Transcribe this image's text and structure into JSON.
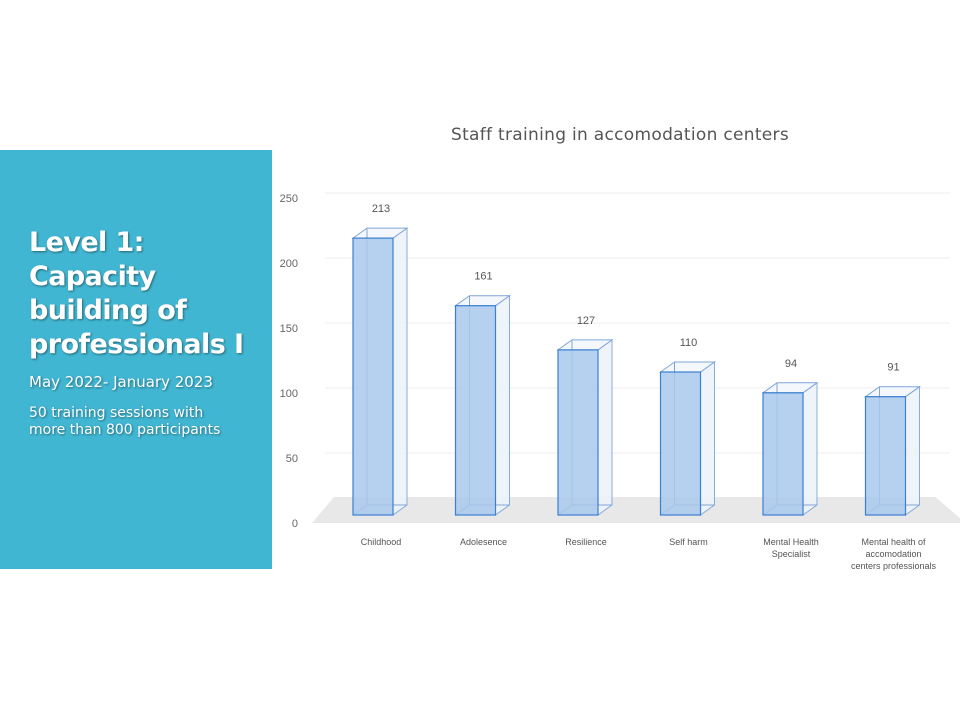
{
  "panel": {
    "heading": "Level 1:\nCapacity building of professionals I",
    "dates": "May 2022- January 2023",
    "description": "50 training sessions with more than 800 participants"
  },
  "colors": {
    "panel_bg": "#41b6d2",
    "bar_fill": "#a9c8ec",
    "bar_stroke": "#3b7fd1",
    "floor": "#e8e8e8",
    "gridline": "#eeeeee"
  },
  "chart_data": {
    "type": "bar",
    "style": "3d-column",
    "title": "Staff training in accomodation centers",
    "categories": [
      "Childhood",
      "Adolesence",
      "Resilience",
      "Self harm",
      "Mental Health Specialist",
      "Mental health of accomodation centers professionals"
    ],
    "category_lines": [
      [
        "Childhood"
      ],
      [
        "Adolesence"
      ],
      [
        "Resilience"
      ],
      [
        "Self harm"
      ],
      [
        "Mental Health",
        "Specialist"
      ],
      [
        "Mental health of",
        "accomodation",
        "centers professionals"
      ]
    ],
    "values": [
      213,
      161,
      127,
      110,
      94,
      91
    ],
    "ylim": [
      0,
      250
    ],
    "yticks": [
      0,
      50,
      100,
      150,
      200,
      250
    ],
    "grid": true,
    "legend": "none",
    "xlabel": "",
    "ylabel": ""
  }
}
